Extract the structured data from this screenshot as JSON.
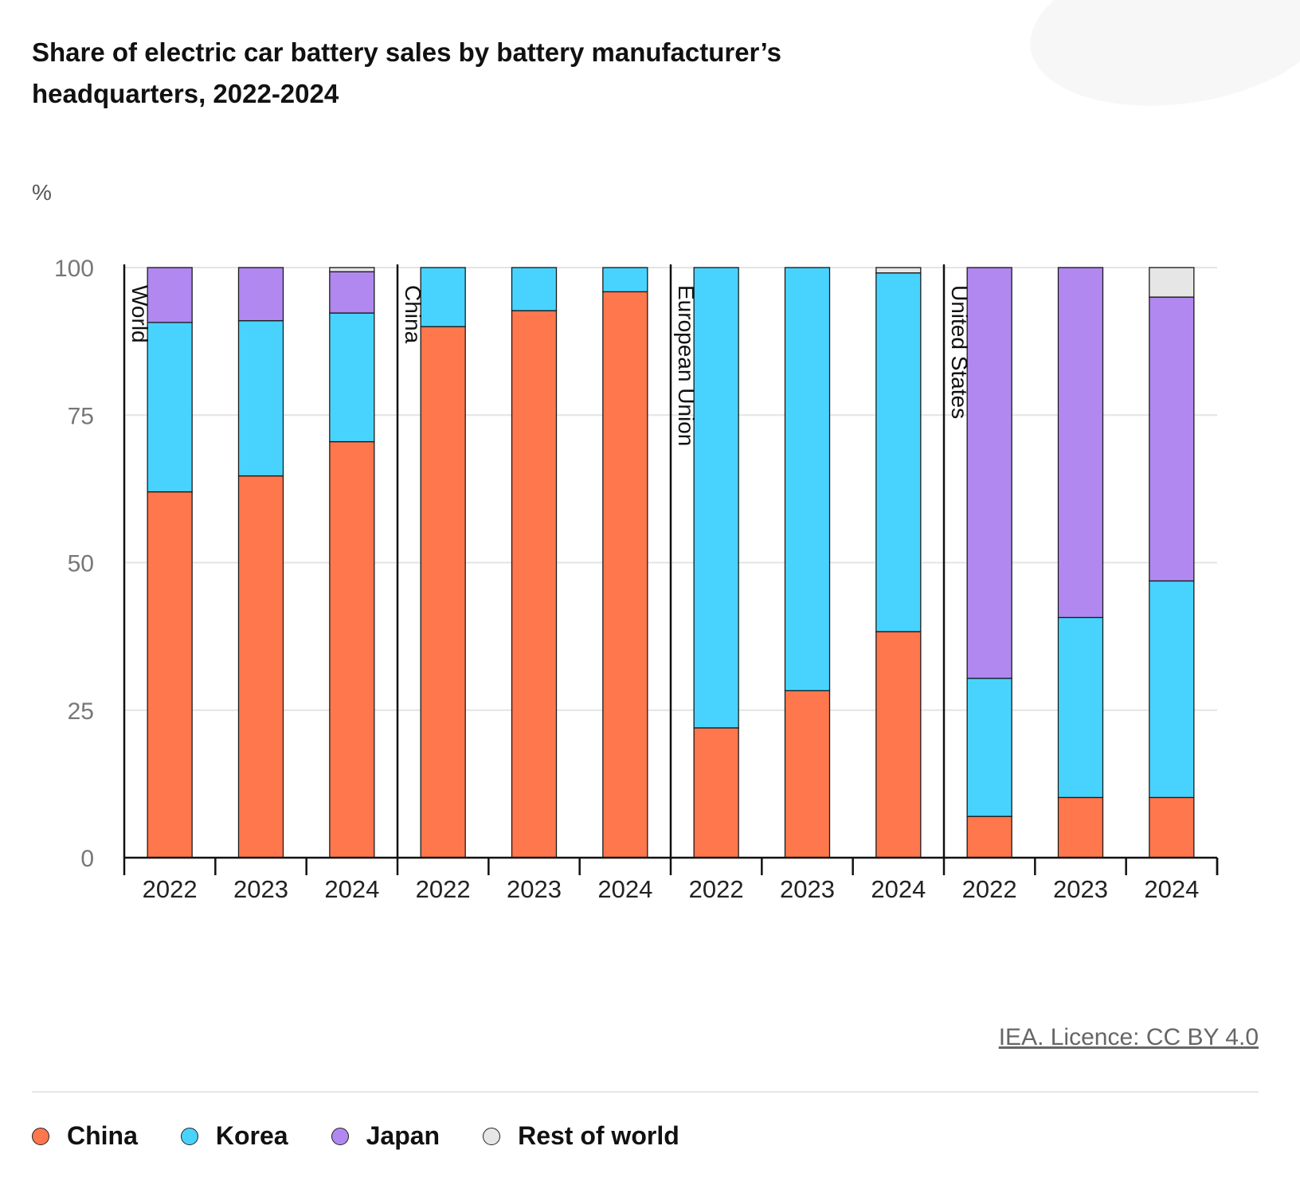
{
  "chart_data": {
    "type": "bar",
    "stacked": true,
    "title": "Share of electric car battery sales by battery manufacturer’s headquarters, 2022-2024",
    "ylabel": "%",
    "ylim": [
      0,
      100
    ],
    "yticks": [
      "0",
      "25",
      "50",
      "75",
      "100"
    ],
    "grid": true,
    "legend_position": "bottom",
    "groups": [
      "World",
      "China",
      "European Union",
      "United States"
    ],
    "categories": [
      "2022",
      "2023",
      "2024"
    ],
    "series": [
      {
        "name": "China",
        "color": "#FF774D",
        "values": [
          [
            62,
            64.7,
            70.5
          ],
          [
            90,
            92.7,
            95.9
          ],
          [
            22,
            28.3,
            38.3
          ],
          [
            7,
            10.2,
            10.2
          ]
        ]
      },
      {
        "name": "Korea",
        "color": "#48D3FF",
        "values": [
          [
            28.7,
            26.3,
            21.8
          ],
          [
            10,
            7.3,
            4.1
          ],
          [
            78,
            71.7,
            60.8
          ],
          [
            23.4,
            30.5,
            36.7
          ]
        ]
      },
      {
        "name": "Japan",
        "color": "#B088F0",
        "values": [
          [
            9.3,
            9,
            7
          ],
          [
            0,
            0,
            0
          ],
          [
            0,
            0,
            0
          ],
          [
            69.6,
            59.3,
            48.1
          ]
        ]
      },
      {
        "name": "Rest of world",
        "color": "#E6E6E6",
        "values": [
          [
            0,
            0,
            0.7
          ],
          [
            0,
            0,
            0
          ],
          [
            0,
            0,
            0.9
          ],
          [
            0,
            0,
            5
          ]
        ]
      }
    ]
  },
  "source": {
    "credit": "IEA. Licence: CC BY 4.0"
  }
}
